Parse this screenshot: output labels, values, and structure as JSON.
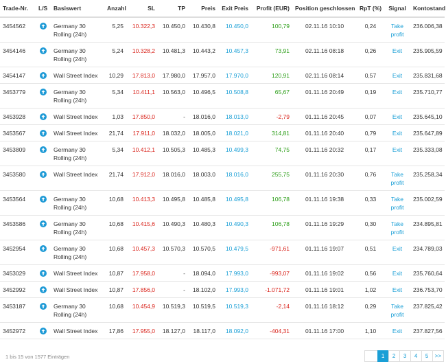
{
  "columns": {
    "trade_nr": "Trade-Nr.",
    "ls": "L/S",
    "basiswert": "Basiswert",
    "anzahl": "Anzahl",
    "sl": "SL",
    "tp": "TP",
    "preis": "Preis",
    "exit_preis": "Exit Preis",
    "profit": "Profit (EUR)",
    "position_geschlossen": "Position geschlossen",
    "rpt": "RpT (%)",
    "signal": "Signal",
    "kontostand": "Kontostand (EUR)"
  },
  "rows": [
    {
      "trade_nr": "3454562",
      "direction": "long",
      "basiswert": "Germany 30 Rolling (24h)",
      "anzahl": "5,25",
      "sl": "10.322,3",
      "tp": "10.450,0",
      "preis": "10.430,8",
      "exit_preis": "10.450,0",
      "profit": "100,79",
      "profit_sign": "pos",
      "geschlossen": "02.11.16 10:10",
      "rpt": "0,24",
      "signal": "Take profit",
      "kontostand": "236.006,38"
    },
    {
      "trade_nr": "3454146",
      "direction": "long",
      "basiswert": "Germany 30 Rolling (24h)",
      "anzahl": "5,24",
      "sl": "10.328,2",
      "tp": "10.481,3",
      "preis": "10.443,2",
      "exit_preis": "10.457,3",
      "profit": "73,91",
      "profit_sign": "pos",
      "geschlossen": "02.11.16 08:18",
      "rpt": "0,26",
      "signal": "Exit",
      "kontostand": "235.905,59"
    },
    {
      "trade_nr": "3454147",
      "direction": "long",
      "basiswert": "Wall Street Index",
      "anzahl": "10,29",
      "sl": "17.813,0",
      "tp": "17.980,0",
      "preis": "17.957,0",
      "exit_preis": "17.970,0",
      "profit": "120,91",
      "profit_sign": "pos",
      "geschlossen": "02.11.16 08:14",
      "rpt": "0,57",
      "signal": "Exit",
      "kontostand": "235.831,68"
    },
    {
      "trade_nr": "3453779",
      "direction": "long",
      "basiswert": "Germany 30 Rolling (24h)",
      "anzahl": "5,34",
      "sl": "10.411,1",
      "tp": "10.563,0",
      "preis": "10.496,5",
      "exit_preis": "10.508,8",
      "profit": "65,67",
      "profit_sign": "pos",
      "geschlossen": "01.11.16 20:49",
      "rpt": "0,19",
      "signal": "Exit",
      "kontostand": "235.710,77"
    },
    {
      "trade_nr": "3453928",
      "direction": "long",
      "basiswert": "Wall Street Index",
      "anzahl": "1,03",
      "sl": "17.850,0",
      "tp": "-",
      "preis": "18.016,0",
      "exit_preis": "18.013,0",
      "profit": "-2,79",
      "profit_sign": "neg",
      "geschlossen": "01.11.16 20:45",
      "rpt": "0,07",
      "signal": "Exit",
      "kontostand": "235.645,10"
    },
    {
      "trade_nr": "3453567",
      "direction": "long",
      "basiswert": "Wall Street Index",
      "anzahl": "21,74",
      "sl": "17.911,0",
      "tp": "18.032,0",
      "preis": "18.005,0",
      "exit_preis": "18.021,0",
      "profit": "314,81",
      "profit_sign": "pos",
      "geschlossen": "01.11.16 20:40",
      "rpt": "0,79",
      "signal": "Exit",
      "kontostand": "235.647,89"
    },
    {
      "trade_nr": "3453809",
      "direction": "long",
      "basiswert": "Germany 30 Rolling (24h)",
      "anzahl": "5,34",
      "sl": "10.412,1",
      "tp": "10.505,3",
      "preis": "10.485,3",
      "exit_preis": "10.499,3",
      "profit": "74,75",
      "profit_sign": "pos",
      "geschlossen": "01.11.16 20:32",
      "rpt": "0,17",
      "signal": "Exit",
      "kontostand": "235.333,08"
    },
    {
      "trade_nr": "3453580",
      "direction": "long",
      "basiswert": "Wall Street Index",
      "anzahl": "21,74",
      "sl": "17.912,0",
      "tp": "18.016,0",
      "preis": "18.003,0",
      "exit_preis": "18.016,0",
      "profit": "255,75",
      "profit_sign": "pos",
      "geschlossen": "01.11.16 20:30",
      "rpt": "0,76",
      "signal": "Take profit",
      "kontostand": "235.258,34"
    },
    {
      "trade_nr": "3453564",
      "direction": "long",
      "basiswert": "Germany 30 Rolling (24h)",
      "anzahl": "10,68",
      "sl": "10.413,3",
      "tp": "10.495,8",
      "preis": "10.485,8",
      "exit_preis": "10.495,8",
      "profit": "106,78",
      "profit_sign": "pos",
      "geschlossen": "01.11.16 19:38",
      "rpt": "0,33",
      "signal": "Take profit",
      "kontostand": "235.002,59"
    },
    {
      "trade_nr": "3453586",
      "direction": "long",
      "basiswert": "Germany 30 Rolling (24h)",
      "anzahl": "10,68",
      "sl": "10.415,6",
      "tp": "10.490,3",
      "preis": "10.480,3",
      "exit_preis": "10.490,3",
      "profit": "106,78",
      "profit_sign": "pos",
      "geschlossen": "01.11.16 19:29",
      "rpt": "0,30",
      "signal": "Take profit",
      "kontostand": "234.895,81"
    },
    {
      "trade_nr": "3452954",
      "direction": "long",
      "basiswert": "Germany 30 Rolling (24h)",
      "anzahl": "10,68",
      "sl": "10.457,3",
      "tp": "10.570,3",
      "preis": "10.570,5",
      "exit_preis": "10.479,5",
      "profit": "-971,61",
      "profit_sign": "neg",
      "geschlossen": "01.11.16 19:07",
      "rpt": "0,51",
      "signal": "Exit",
      "kontostand": "234.789,03"
    },
    {
      "trade_nr": "3453029",
      "direction": "long",
      "basiswert": "Wall Street Index",
      "anzahl": "10,87",
      "sl": "17.958,0",
      "tp": "-",
      "preis": "18.094,0",
      "exit_preis": "17.993,0",
      "profit": "-993,07",
      "profit_sign": "neg",
      "geschlossen": "01.11.16 19:02",
      "rpt": "0,56",
      "signal": "Exit",
      "kontostand": "235.760,64"
    },
    {
      "trade_nr": "3452992",
      "direction": "long",
      "basiswert": "Wall Street Index",
      "anzahl": "10,87",
      "sl": "17.856,0",
      "tp": "-",
      "preis": "18.102,0",
      "exit_preis": "17.993,0",
      "profit": "-1.071,72",
      "profit_sign": "neg",
      "geschlossen": "01.11.16 19:01",
      "rpt": "1,02",
      "signal": "Exit",
      "kontostand": "236.753,70"
    },
    {
      "trade_nr": "3453187",
      "direction": "long",
      "basiswert": "Germany 30 Rolling (24h)",
      "anzahl": "10,68",
      "sl": "10.454,9",
      "tp": "10.519,3",
      "preis": "10.519,5",
      "exit_preis": "10.519,3",
      "profit": "-2,14",
      "profit_sign": "neg",
      "geschlossen": "01.11.16 18:12",
      "rpt": "0,29",
      "signal": "Take profit",
      "kontostand": "237.825,42"
    },
    {
      "trade_nr": "3452972",
      "direction": "long",
      "basiswert": "Wall Street Index",
      "anzahl": "17,86",
      "sl": "17.955,0",
      "tp": "18.127,0",
      "preis": "18.117,0",
      "exit_preis": "18.092,0",
      "profit": "-404,31",
      "profit_sign": "neg",
      "geschlossen": "01.11.16 17:00",
      "rpt": "1,10",
      "signal": "Exit",
      "kontostand": "237.827,56"
    }
  ],
  "footer": {
    "info": "1 bis 15 von 1577 Einträgen"
  },
  "pagination": {
    "prev_label": "",
    "pages": [
      "1",
      "2",
      "3",
      "4",
      "5"
    ],
    "active_page": "1",
    "next_label": ">>"
  },
  "icons": {
    "long": "arrow-up-circle-icon"
  },
  "colors": {
    "accent": "#1a9fd6",
    "negative": "#d9231b",
    "positive": "#2a9d16",
    "sl": "#d9231b"
  }
}
